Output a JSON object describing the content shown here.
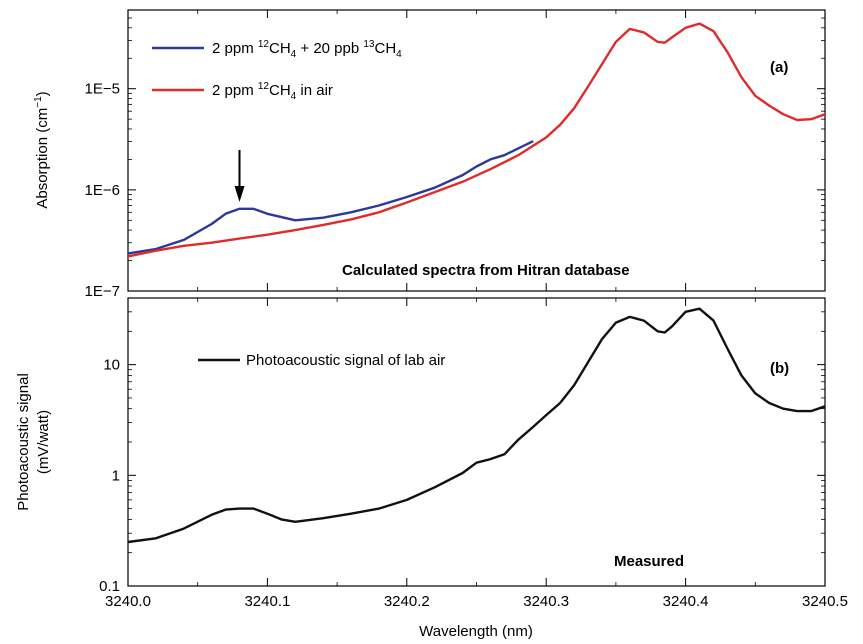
{
  "chart_data": [
    {
      "type": "line",
      "panel_label": "(a)",
      "ylabel_main": "Absorption (cm",
      "ylabel_sup": "−1",
      "ylabel_end": ")",
      "yscale": "log",
      "ylim": [
        1e-07,
        6e-05
      ],
      "xlim": [
        3240.0,
        3240.5
      ],
      "y_ticks": [
        {
          "value": 1e-07,
          "label": "1E−7"
        },
        {
          "value": 1e-06,
          "label": "1E−6"
        },
        {
          "value": 1e-05,
          "label": "1E−5"
        }
      ],
      "annotation": "Calculated spectra from Hitran database",
      "arrow_at_x": 3240.08,
      "series": [
        {
          "legend_parts": [
            "2 ppm ",
            "12",
            "CH",
            "4",
            " + 20 ppb ",
            "13",
            "CH",
            "4"
          ],
          "color": "#2b3a9a",
          "x": [
            3240.0,
            3240.02,
            3240.04,
            3240.06,
            3240.07,
            3240.08,
            3240.09,
            3240.1,
            3240.12,
            3240.14,
            3240.16,
            3240.18,
            3240.2,
            3240.22,
            3240.24,
            3240.25,
            3240.26,
            3240.27,
            3240.29
          ],
          "y": [
            2.35e-07,
            2.6e-07,
            3.2e-07,
            4.6e-07,
            5.8e-07,
            6.5e-07,
            6.5e-07,
            5.8e-07,
            5e-07,
            5.3e-07,
            6e-07,
            7e-07,
            8.5e-07,
            1.05e-06,
            1.4e-06,
            1.7e-06,
            2e-06,
            2.2e-06,
            3e-06
          ]
        },
        {
          "legend_parts": [
            "2 ppm ",
            "12",
            "CH",
            "4",
            " in air"
          ],
          "color": "#e02b2b",
          "x": [
            3240.0,
            3240.02,
            3240.04,
            3240.06,
            3240.08,
            3240.1,
            3240.12,
            3240.14,
            3240.16,
            3240.18,
            3240.2,
            3240.22,
            3240.24,
            3240.26,
            3240.28,
            3240.3,
            3240.31,
            3240.32,
            3240.33,
            3240.34,
            3240.35,
            3240.36,
            3240.37,
            3240.38,
            3240.385,
            3240.39,
            3240.4,
            3240.41,
            3240.42,
            3240.43,
            3240.44,
            3240.45,
            3240.46,
            3240.47,
            3240.48,
            3240.49,
            3240.5
          ],
          "y": [
            2.2e-07,
            2.5e-07,
            2.8e-07,
            3e-07,
            3.3e-07,
            3.6e-07,
            4e-07,
            4.5e-07,
            5.1e-07,
            6e-07,
            7.5e-07,
            9.5e-07,
            1.2e-06,
            1.6e-06,
            2.2e-06,
            3.3e-06,
            4.4e-06,
            6.4e-06,
            1.05e-05,
            1.75e-05,
            2.9e-05,
            3.9e-05,
            3.6e-05,
            2.9e-05,
            2.85e-05,
            3.2e-05,
            4e-05,
            4.4e-05,
            3.7e-05,
            2.3e-05,
            1.3e-05,
            8.5e-06,
            6.8e-06,
            5.6e-06,
            4.9e-06,
            5e-06,
            5.6e-06
          ]
        }
      ]
    },
    {
      "type": "line",
      "panel_label": "(b)",
      "ylabel_line1": "Photoacoustic signal",
      "ylabel_line2": "(mV/watt)",
      "yscale": "log",
      "ylim": [
        0.1,
        40
      ],
      "xlim": [
        3240.0,
        3240.5
      ],
      "y_ticks": [
        {
          "value": 0.1,
          "label": "0.1"
        },
        {
          "value": 1,
          "label": "1"
        },
        {
          "value": 10,
          "label": "10"
        }
      ],
      "annotation": "Measured",
      "series": [
        {
          "legend": "Photoacoustic signal of lab air",
          "color": "#111111",
          "x": [
            3240.0,
            3240.02,
            3240.04,
            3240.06,
            3240.07,
            3240.08,
            3240.09,
            3240.1,
            3240.11,
            3240.12,
            3240.14,
            3240.16,
            3240.18,
            3240.2,
            3240.22,
            3240.24,
            3240.25,
            3240.26,
            3240.27,
            3240.28,
            3240.29,
            3240.3,
            3240.31,
            3240.32,
            3240.33,
            3240.34,
            3240.35,
            3240.36,
            3240.37,
            3240.38,
            3240.385,
            3240.39,
            3240.4,
            3240.41,
            3240.42,
            3240.43,
            3240.44,
            3240.45,
            3240.46,
            3240.47,
            3240.48,
            3240.49,
            3240.5
          ],
          "y": [
            0.25,
            0.27,
            0.33,
            0.44,
            0.49,
            0.5,
            0.5,
            0.45,
            0.4,
            0.38,
            0.41,
            0.45,
            0.5,
            0.6,
            0.78,
            1.05,
            1.3,
            1.4,
            1.55,
            2.1,
            2.7,
            3.5,
            4.5,
            6.5,
            10.5,
            17,
            24,
            27,
            25,
            20,
            19.5,
            22,
            30,
            32,
            25,
            14,
            8,
            5.5,
            4.5,
            4.0,
            3.8,
            3.8,
            4.2
          ]
        }
      ]
    }
  ],
  "x_axis": {
    "label": "Wavelength (nm)",
    "ticks": [
      {
        "value": 3240.0,
        "label": "3240.0"
      },
      {
        "value": 3240.1,
        "label": "3240.1"
      },
      {
        "value": 3240.2,
        "label": "3240.2"
      },
      {
        "value": 3240.3,
        "label": "3240.3"
      },
      {
        "value": 3240.4,
        "label": "3240.4"
      },
      {
        "value": 3240.5,
        "label": "3240.5"
      }
    ]
  }
}
